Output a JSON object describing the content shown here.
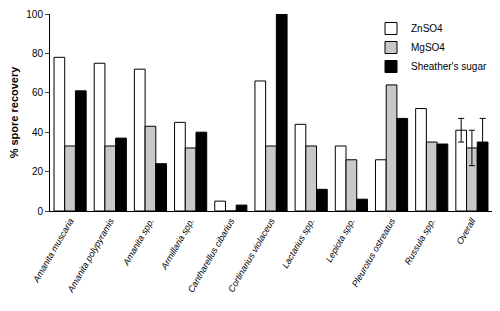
{
  "chart_data": {
    "type": "bar",
    "y_label": "% spore recovery",
    "categories": [
      "Amanita muscaria",
      "Amanita polypyramis",
      "Amanita spp.",
      "Armillaria spp.",
      "Cantharellus cibarius",
      "Cortinarius violaceus",
      "Lactarius spp.",
      "Lepiota spp.",
      "Pleurotus ostreatus",
      "Russula spp.",
      "Overall"
    ],
    "series": [
      {
        "name": "ZnSO4",
        "color": "#ffffff",
        "values": [
          78,
          75,
          72,
          45,
          5,
          66,
          44,
          33,
          26,
          52,
          41
        ],
        "errors": [
          null,
          null,
          null,
          null,
          null,
          null,
          null,
          null,
          null,
          null,
          6
        ]
      },
      {
        "name": "MgSO4",
        "color": "#c8c8c8",
        "values": [
          33,
          33,
          43,
          32,
          0,
          33,
          33,
          26,
          64,
          35,
          32
        ],
        "errors": [
          null,
          null,
          null,
          null,
          null,
          null,
          null,
          null,
          null,
          null,
          9
        ]
      },
      {
        "name": "Sheather's sugar",
        "color": "#000000",
        "values": [
          61,
          37,
          24,
          40,
          3,
          100,
          11,
          6,
          47,
          34,
          35
        ],
        "errors": [
          null,
          null,
          null,
          null,
          null,
          null,
          null,
          null,
          null,
          null,
          12
        ]
      }
    ],
    "ylim": [
      0,
      100
    ],
    "yticks": [
      0,
      20,
      40,
      60,
      80,
      100
    ],
    "grid": false,
    "legend": "top-right"
  }
}
